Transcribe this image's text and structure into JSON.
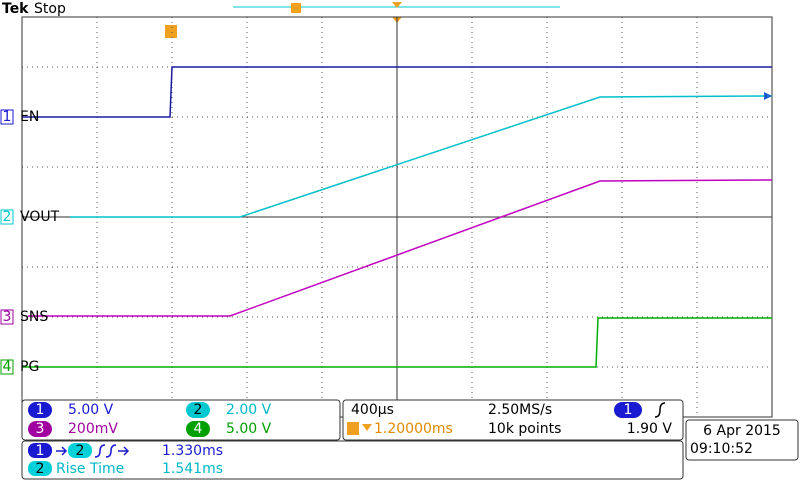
{
  "header": {
    "brand": "Tek",
    "status": "Stop"
  },
  "channels": [
    {
      "number": "1",
      "label": "EN",
      "scale": "5.00 V"
    },
    {
      "number": "2",
      "label": "VOUT",
      "scale": "2.00 V"
    },
    {
      "number": "3",
      "label": "SNS",
      "scale": "200mV"
    },
    {
      "number": "4",
      "label": "PG",
      "scale": "5.00 V"
    }
  ],
  "timebase": {
    "scale": "400µs",
    "sample_rate": "2.50MS/s",
    "trigger_position": "1.20000ms",
    "record_length": "10k points"
  },
  "trigger": {
    "source": "1",
    "level": "1.90 V"
  },
  "measurements": [
    {
      "source": "1",
      "target": "2",
      "value": "1.330ms"
    },
    {
      "source": "2",
      "name": "Rise Time",
      "value": "1.541ms"
    }
  ],
  "datetime": {
    "date": "6 Apr 2015",
    "time": "09:10:52"
  }
}
